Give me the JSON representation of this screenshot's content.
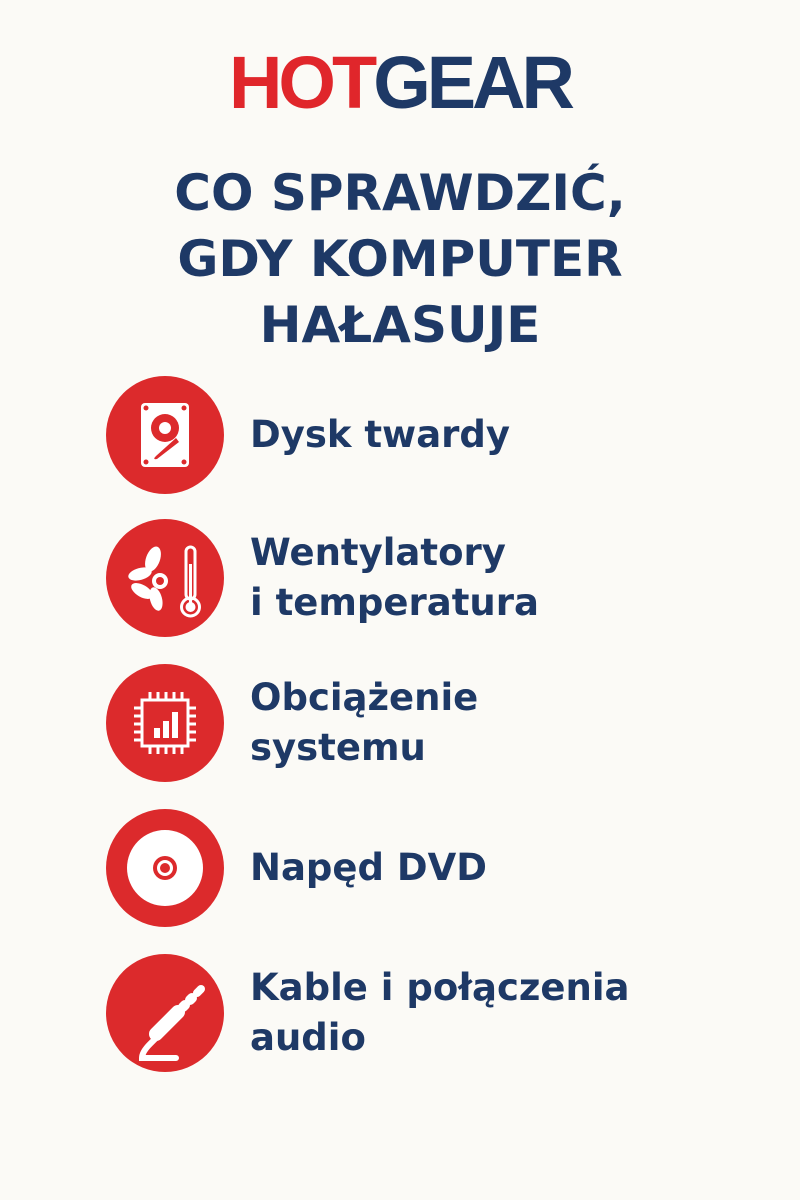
{
  "logo": {
    "part1": "HOT",
    "part2": "GEAR"
  },
  "title": {
    "lines": [
      "CO SPRAWDZIĆ,",
      "GDY KOMPUTER",
      "HAŁASUJE"
    ]
  },
  "colors": {
    "accent": "#dc2a2c",
    "text": "#1e3966",
    "background": "#fbfaf6"
  },
  "items": [
    {
      "icon": "hard-drive-icon",
      "lines": [
        "Dysk twardy"
      ]
    },
    {
      "icon": "fan-thermometer-icon",
      "lines": [
        "Wentylatory",
        "i temperatura"
      ]
    },
    {
      "icon": "cpu-load-icon",
      "lines": [
        "Obciążenie",
        "systemu"
      ]
    },
    {
      "icon": "dvd-disc-icon",
      "lines": [
        "Napęd DVD"
      ]
    },
    {
      "icon": "audio-cable-icon",
      "lines": [
        "Kable i połączenia",
        "audio"
      ]
    }
  ]
}
